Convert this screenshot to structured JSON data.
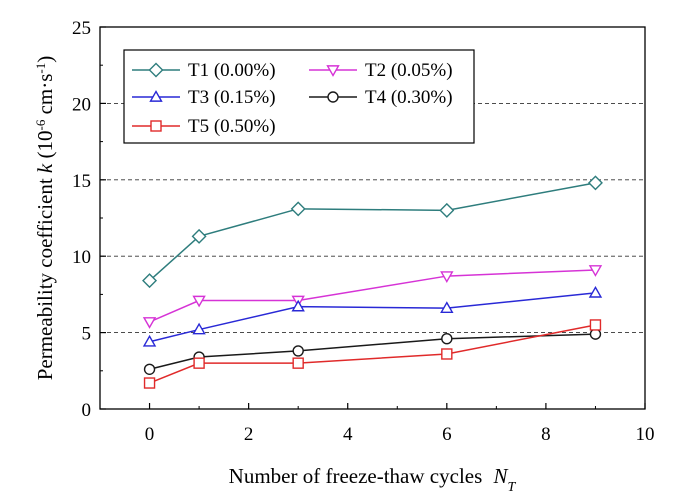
{
  "chart_data": {
    "type": "line",
    "xlabel": "Number of freeze-thaw cycles",
    "xlabel_symbol": "N",
    "xlabel_subscript": "T",
    "ylabel_prefix": "Permeability coefficient",
    "ylabel_symbol": "k",
    "ylabel_unit_open": "(10",
    "ylabel_unit_exp1": "-6",
    "ylabel_unit_mid": " cm·s",
    "ylabel_unit_exp2": "-1",
    "ylabel_unit_close": ")",
    "xlim": [
      -1,
      10
    ],
    "ylim": [
      0,
      25
    ],
    "xticks": [
      0,
      2,
      4,
      6,
      8,
      10
    ],
    "yticks": [
      0,
      5,
      10,
      15,
      20,
      25
    ],
    "gridlines_y": [
      5,
      10,
      15,
      20
    ],
    "grid": "dashed horizontal",
    "legend_position": "top-left",
    "x": [
      0,
      1,
      3,
      6,
      9
    ],
    "series": [
      {
        "name": "T1 (0.00%)",
        "color": "#2e7d7d",
        "marker": "diamond",
        "values": [
          8.4,
          11.3,
          13.1,
          13.0,
          14.8
        ]
      },
      {
        "name": "T2 (0.05%)",
        "color": "#d633d6",
        "marker": "triangle-down",
        "values": [
          5.7,
          7.1,
          7.1,
          8.7,
          9.1
        ]
      },
      {
        "name": "T3 (0.15%)",
        "color": "#2929d6",
        "marker": "triangle-up",
        "values": [
          4.4,
          5.2,
          6.7,
          6.6,
          7.6
        ]
      },
      {
        "name": "T4 (0.30%)",
        "color": "#1a1a1a",
        "marker": "circle",
        "values": [
          2.6,
          3.4,
          3.8,
          4.6,
          4.9
        ]
      },
      {
        "name": "T5 (0.50%)",
        "color": "#e02a2a",
        "marker": "square",
        "values": [
          1.7,
          3.0,
          3.0,
          3.6,
          5.5
        ]
      }
    ]
  }
}
